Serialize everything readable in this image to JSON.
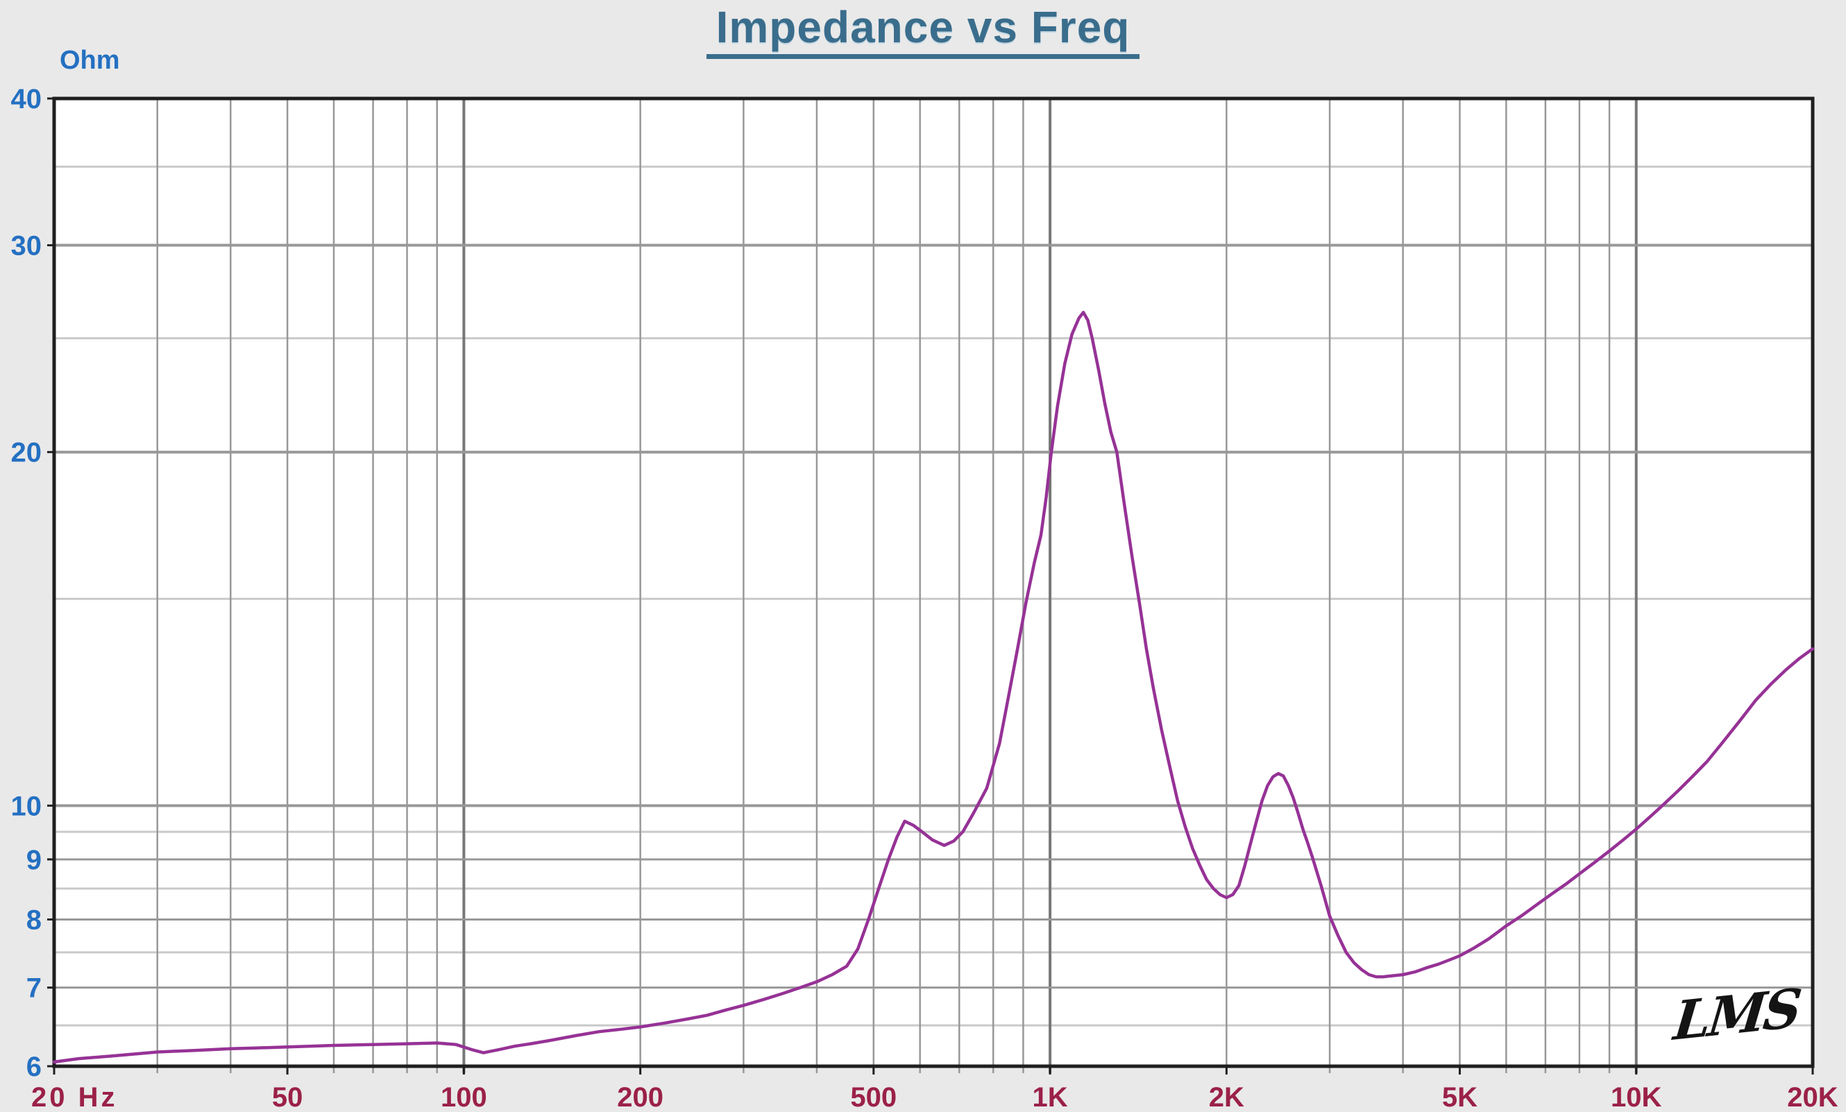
{
  "header": {
    "title": "Impedance vs Freq"
  },
  "chart_data": {
    "type": "line",
    "title": "Impedance vs Freq",
    "y_unit": "Ohm",
    "logo": "LMS",
    "x_axis": {
      "scale": "log",
      "min": 20,
      "max": 20000,
      "label_color": "#9b2148",
      "ticks": [
        {
          "value": 20,
          "label": "20 Hz"
        },
        {
          "value": 50,
          "label": "50"
        },
        {
          "value": 100,
          "label": "100"
        },
        {
          "value": 200,
          "label": "200"
        },
        {
          "value": 500,
          "label": "500"
        },
        {
          "value": 1000,
          "label": "1K"
        },
        {
          "value": 2000,
          "label": "2K"
        },
        {
          "value": 5000,
          "label": "5K"
        },
        {
          "value": 10000,
          "label": "10K"
        },
        {
          "value": 20000,
          "label": "20K"
        }
      ],
      "gridlines": [
        30,
        40,
        50,
        60,
        70,
        80,
        90,
        100,
        200,
        300,
        400,
        500,
        600,
        700,
        800,
        900,
        1000,
        2000,
        3000,
        4000,
        5000,
        6000,
        7000,
        8000,
        9000,
        10000
      ],
      "decade_lines": [
        100,
        1000,
        10000
      ]
    },
    "y_axis": {
      "scale": "log",
      "min": 6,
      "max": 40,
      "label_color": "#2470c2",
      "major_ticks": [
        {
          "value": 40,
          "label": "40"
        },
        {
          "value": 30,
          "label": "30"
        },
        {
          "value": 20,
          "label": "20"
        },
        {
          "value": 10,
          "label": "10"
        },
        {
          "value": 9,
          "label": "9"
        },
        {
          "value": 8,
          "label": "8"
        },
        {
          "value": 7,
          "label": "7"
        },
        {
          "value": 6,
          "label": "6"
        }
      ],
      "minor_gridlines": [
        35,
        25,
        15,
        9.5,
        8.5,
        7.5,
        6.5
      ]
    },
    "grid": {
      "major_color": "#989898",
      "minor_color": "#c9c9c9",
      "decade_color": "#777777",
      "border_color": "#1f1f1f",
      "plot_bg": "#ffffff"
    },
    "series": [
      {
        "name": "Impedance",
        "color": "#963296",
        "points": [
          [
            20,
            6.05
          ],
          [
            22,
            6.09
          ],
          [
            25,
            6.12
          ],
          [
            28,
            6.15
          ],
          [
            30,
            6.17
          ],
          [
            35,
            6.19
          ],
          [
            40,
            6.21
          ],
          [
            45,
            6.22
          ],
          [
            50,
            6.23
          ],
          [
            60,
            6.25
          ],
          [
            70,
            6.26
          ],
          [
            80,
            6.27
          ],
          [
            90,
            6.28
          ],
          [
            97,
            6.26
          ],
          [
            103,
            6.2
          ],
          [
            108,
            6.16
          ],
          [
            115,
            6.2
          ],
          [
            122,
            6.24
          ],
          [
            130,
            6.27
          ],
          [
            140,
            6.31
          ],
          [
            155,
            6.37
          ],
          [
            170,
            6.42
          ],
          [
            185,
            6.45
          ],
          [
            200,
            6.48
          ],
          [
            220,
            6.53
          ],
          [
            240,
            6.58
          ],
          [
            260,
            6.63
          ],
          [
            280,
            6.7
          ],
          [
            300,
            6.76
          ],
          [
            325,
            6.84
          ],
          [
            350,
            6.92
          ],
          [
            375,
            7.0
          ],
          [
            400,
            7.08
          ],
          [
            425,
            7.18
          ],
          [
            450,
            7.3
          ],
          [
            470,
            7.55
          ],
          [
            490,
            8.0
          ],
          [
            510,
            8.5
          ],
          [
            530,
            9.0
          ],
          [
            548,
            9.4
          ],
          [
            565,
            9.7
          ],
          [
            585,
            9.62
          ],
          [
            605,
            9.5
          ],
          [
            630,
            9.35
          ],
          [
            660,
            9.25
          ],
          [
            685,
            9.33
          ],
          [
            710,
            9.5
          ],
          [
            740,
            9.85
          ],
          [
            780,
            10.35
          ],
          [
            820,
            11.3
          ],
          [
            850,
            12.4
          ],
          [
            880,
            13.6
          ],
          [
            910,
            14.9
          ],
          [
            940,
            16.1
          ],
          [
            965,
            17.0
          ],
          [
            985,
            18.3
          ],
          [
            1005,
            20.0
          ],
          [
            1030,
            21.9
          ],
          [
            1060,
            23.8
          ],
          [
            1090,
            25.2
          ],
          [
            1120,
            26.0
          ],
          [
            1140,
            26.3
          ],
          [
            1160,
            25.9
          ],
          [
            1180,
            25.0
          ],
          [
            1210,
            23.5
          ],
          [
            1240,
            22.0
          ],
          [
            1270,
            20.8
          ],
          [
            1300,
            20.0
          ],
          [
            1340,
            18.0
          ],
          [
            1380,
            16.3
          ],
          [
            1420,
            14.9
          ],
          [
            1460,
            13.6
          ],
          [
            1500,
            12.6
          ],
          [
            1550,
            11.6
          ],
          [
            1600,
            10.8
          ],
          [
            1650,
            10.1
          ],
          [
            1700,
            9.6
          ],
          [
            1750,
            9.2
          ],
          [
            1800,
            8.9
          ],
          [
            1850,
            8.65
          ],
          [
            1900,
            8.5
          ],
          [
            1950,
            8.4
          ],
          [
            2000,
            8.35
          ],
          [
            2050,
            8.4
          ],
          [
            2100,
            8.55
          ],
          [
            2150,
            8.9
          ],
          [
            2200,
            9.3
          ],
          [
            2250,
            9.7
          ],
          [
            2300,
            10.1
          ],
          [
            2350,
            10.4
          ],
          [
            2400,
            10.58
          ],
          [
            2450,
            10.65
          ],
          [
            2500,
            10.6
          ],
          [
            2550,
            10.4
          ],
          [
            2600,
            10.15
          ],
          [
            2650,
            9.85
          ],
          [
            2700,
            9.55
          ],
          [
            2750,
            9.3
          ],
          [
            2800,
            9.05
          ],
          [
            2900,
            8.55
          ],
          [
            3000,
            8.05
          ],
          [
            3100,
            7.75
          ],
          [
            3200,
            7.5
          ],
          [
            3300,
            7.35
          ],
          [
            3400,
            7.25
          ],
          [
            3500,
            7.18
          ],
          [
            3600,
            7.15
          ],
          [
            3700,
            7.15
          ],
          [
            3800,
            7.16
          ],
          [
            4000,
            7.18
          ],
          [
            4200,
            7.22
          ],
          [
            4400,
            7.28
          ],
          [
            4600,
            7.33
          ],
          [
            4800,
            7.39
          ],
          [
            5000,
            7.45
          ],
          [
            5300,
            7.57
          ],
          [
            5600,
            7.7
          ],
          [
            6000,
            7.9
          ],
          [
            6400,
            8.07
          ],
          [
            6800,
            8.25
          ],
          [
            7200,
            8.42
          ],
          [
            7600,
            8.58
          ],
          [
            8000,
            8.75
          ],
          [
            8500,
            8.95
          ],
          [
            9000,
            9.15
          ],
          [
            9500,
            9.35
          ],
          [
            10000,
            9.55
          ],
          [
            10600,
            9.8
          ],
          [
            11200,
            10.05
          ],
          [
            11800,
            10.3
          ],
          [
            12500,
            10.6
          ],
          [
            13200,
            10.9
          ],
          [
            14000,
            11.3
          ],
          [
            15000,
            11.8
          ],
          [
            16000,
            12.3
          ],
          [
            17000,
            12.7
          ],
          [
            18000,
            13.05
          ],
          [
            19000,
            13.35
          ],
          [
            20000,
            13.6
          ]
        ]
      }
    ]
  }
}
